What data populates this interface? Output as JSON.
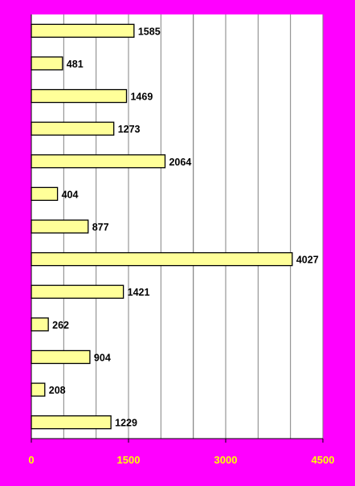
{
  "chart_data": {
    "type": "bar",
    "orientation": "horizontal",
    "values": [
      1585,
      481,
      1469,
      1273,
      2064,
      404,
      877,
      4027,
      1421,
      262,
      904,
      208,
      1229
    ],
    "xlim": [
      0,
      4500
    ],
    "x_ticks": [
      0,
      1500,
      3000,
      4500
    ],
    "x_tick_labels": [
      "0",
      "1500",
      "3000",
      "4500"
    ],
    "gridlines": [
      500,
      1000,
      1500,
      2000,
      2500,
      3000,
      3500,
      4000,
      4500
    ],
    "grid": true,
    "legend": "none",
    "title": "",
    "xlabel": "",
    "ylabel": ""
  },
  "colors": {
    "background": "#ff00ff",
    "plot_area": "#ffffff",
    "bar_fill": "#ffff99",
    "bar_stroke": "#000000",
    "gridline": "#808080",
    "label_text": "#000000",
    "tick_text": "#ffff00"
  }
}
